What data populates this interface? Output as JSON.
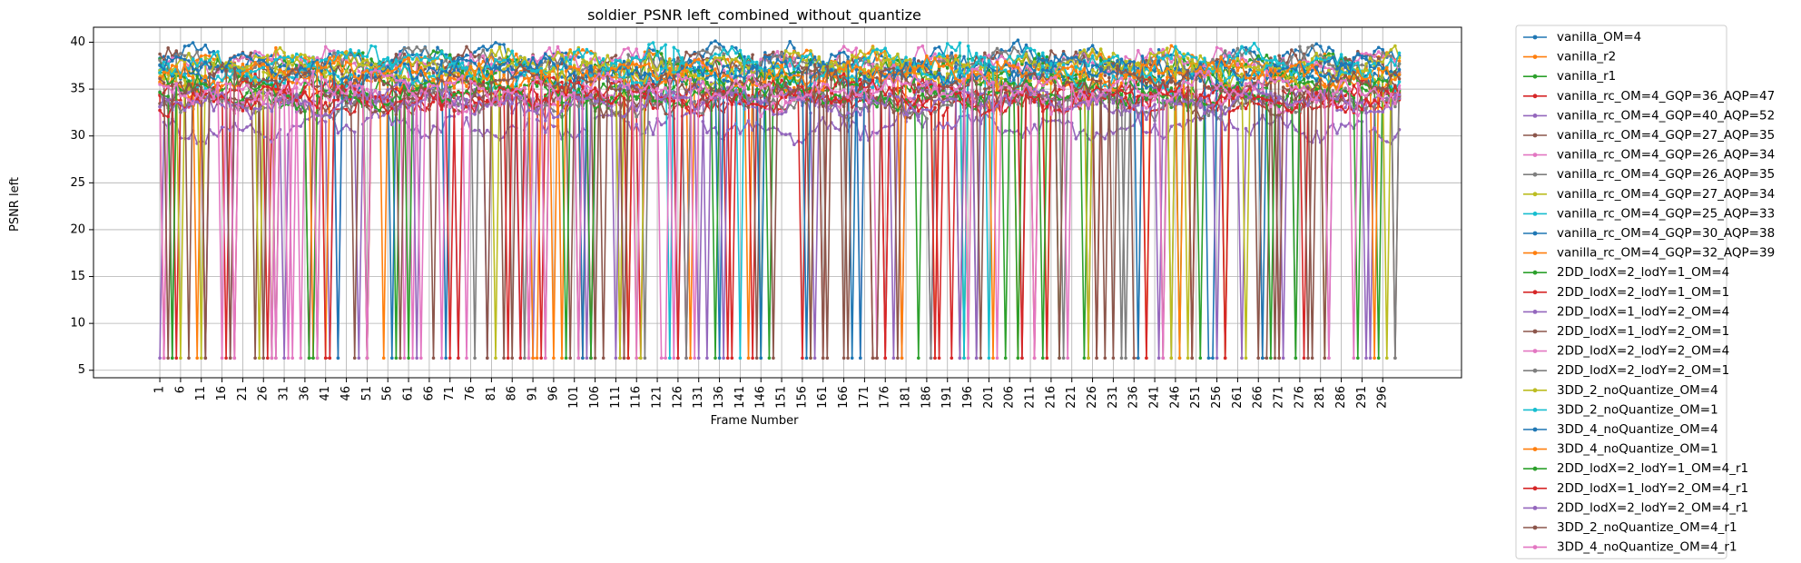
{
  "chart_data": {
    "type": "line",
    "title": "soldier_PSNR left_combined_without_quantize",
    "xlabel": "Frame Number",
    "ylabel": "PSNR left",
    "xlim": [
      -15,
      315
    ],
    "ylim": [
      4.2,
      41.6
    ],
    "x_ticks": [
      1,
      6,
      11,
      16,
      21,
      26,
      31,
      36,
      41,
      46,
      51,
      56,
      61,
      66,
      71,
      76,
      81,
      86,
      91,
      96,
      101,
      106,
      111,
      116,
      121,
      126,
      131,
      136,
      141,
      146,
      151,
      156,
      161,
      166,
      171,
      176,
      181,
      186,
      191,
      196,
      201,
      206,
      211,
      216,
      221,
      226,
      231,
      236,
      241,
      246,
      251,
      256,
      261,
      266,
      271,
      276,
      281,
      286,
      291,
      296
    ],
    "y_ticks": [
      5,
      10,
      15,
      20,
      25,
      30,
      35,
      40
    ],
    "grid": true,
    "legend_position": "outside-right",
    "frames": {
      "start": 1,
      "end": 300,
      "step": 1
    },
    "series": [
      {
        "name": "vanilla_OM=4",
        "color": "#1f77b4",
        "base": 38.2,
        "low": 6.3,
        "drop_rate": 0.0
      },
      {
        "name": "vanilla_r2",
        "color": "#ff7f0e",
        "base": 37.6,
        "low": 6.3,
        "drop_rate": 0.02
      },
      {
        "name": "vanilla_r1",
        "color": "#2ca02c",
        "base": 37.2,
        "low": 6.3,
        "drop_rate": 0.03
      },
      {
        "name": "vanilla_rc_OM=4_GQP=36_AQP=47",
        "color": "#d62728",
        "base": 33.8,
        "low": 6.3,
        "drop_rate": 0.06
      },
      {
        "name": "vanilla_rc_OM=4_GQP=40_AQP=52",
        "color": "#9467bd",
        "base": 31.0,
        "low": 6.3,
        "drop_rate": 0.04
      },
      {
        "name": "vanilla_rc_OM=4_GQP=27_AQP=35",
        "color": "#8c564b",
        "base": 37.5,
        "low": 6.3,
        "drop_rate": 0.05
      },
      {
        "name": "vanilla_rc_OM=4_GQP=26_AQP=34",
        "color": "#e377c2",
        "base": 37.8,
        "low": 6.3,
        "drop_rate": 0.02
      },
      {
        "name": "vanilla_rc_OM=4_GQP=26_AQP=35",
        "color": "#7f7f7f",
        "base": 37.7,
        "low": 6.3,
        "drop_rate": 0.02
      },
      {
        "name": "vanilla_rc_OM=4_GQP=27_AQP=34",
        "color": "#bcbd22",
        "base": 37.6,
        "low": 6.3,
        "drop_rate": 0.02
      },
      {
        "name": "vanilla_rc_OM=4_GQP=25_AQP=33",
        "color": "#17becf",
        "base": 38.0,
        "low": 6.3,
        "drop_rate": 0.01
      },
      {
        "name": "vanilla_rc_OM=4_GQP=30_AQP=38",
        "color": "#1f77b4",
        "base": 36.5,
        "low": 6.3,
        "drop_rate": 0.02
      },
      {
        "name": "vanilla_rc_OM=4_GQP=32_AQP=39",
        "color": "#ff7f0e",
        "base": 35.8,
        "low": 6.3,
        "drop_rate": 0.02
      },
      {
        "name": "2DD_lodX=2_lodY=1_OM=4",
        "color": "#2ca02c",
        "base": 35.0,
        "low": 6.3,
        "drop_rate": 0.03
      },
      {
        "name": "2DD_lodX=2_lodY=1_OM=1",
        "color": "#d62728",
        "base": 34.6,
        "low": 6.3,
        "drop_rate": 0.04
      },
      {
        "name": "2DD_lodX=1_lodY=2_OM=4",
        "color": "#9467bd",
        "base": 34.2,
        "low": 6.3,
        "drop_rate": 0.03
      },
      {
        "name": "2DD_lodX=1_lodY=2_OM=1",
        "color": "#8c564b",
        "base": 33.8,
        "low": 6.3,
        "drop_rate": 0.04
      },
      {
        "name": "2DD_lodX=2_lodY=2_OM=4",
        "color": "#e377c2",
        "base": 34.0,
        "low": 6.3,
        "drop_rate": 0.03
      },
      {
        "name": "2DD_lodX=2_lodY=2_OM=1",
        "color": "#7f7f7f",
        "base": 33.5,
        "low": 6.3,
        "drop_rate": 0.03
      },
      {
        "name": "3DD_2_noQuantize_OM=4",
        "color": "#bcbd22",
        "base": 36.8,
        "low": 6.3,
        "drop_rate": 0.02
      },
      {
        "name": "3DD_2_noQuantize_OM=1",
        "color": "#17becf",
        "base": 36.4,
        "low": 6.3,
        "drop_rate": 0.02
      },
      {
        "name": "3DD_4_noQuantize_OM=4",
        "color": "#1f77b4",
        "base": 37.0,
        "low": 6.3,
        "drop_rate": 0.02
      },
      {
        "name": "3DD_4_noQuantize_OM=1",
        "color": "#ff7f0e",
        "base": 36.6,
        "low": 6.3,
        "drop_rate": 0.02
      },
      {
        "name": "2DD_lodX=2_lodY=1_OM=4_r1",
        "color": "#2ca02c",
        "base": 34.4,
        "low": 6.3,
        "drop_rate": 0.05
      },
      {
        "name": "2DD_lodX=1_lodY=2_OM=4_r1",
        "color": "#d62728",
        "base": 34.0,
        "low": 6.3,
        "drop_rate": 0.05
      },
      {
        "name": "2DD_lodX=2_lodY=2_OM=4_r1",
        "color": "#9467bd",
        "base": 33.6,
        "low": 6.3,
        "drop_rate": 0.04
      },
      {
        "name": "3DD_2_noQuantize_OM=4_r1",
        "color": "#8c564b",
        "base": 35.6,
        "low": 6.3,
        "drop_rate": 0.06
      },
      {
        "name": "3DD_4_noQuantize_OM=4_r1",
        "color": "#e377c2",
        "base": 35.2,
        "low": 6.3,
        "drop_rate": 0.07
      }
    ]
  }
}
